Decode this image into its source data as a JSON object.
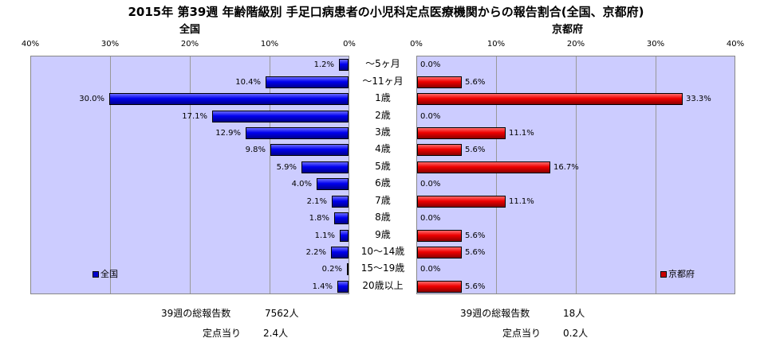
{
  "title": "2015年 第39週 年齢階級別 手足口病患者の小児科定点医療機関からの報告割合(全国、京都府)",
  "chart_data": [
    {
      "type": "bar",
      "orientation": "horizontal",
      "direction": "right-to-left",
      "title": "全国",
      "categories": [
        "～5ヶ月",
        "～11ヶ月",
        "1歳",
        "2歳",
        "3歳",
        "4歳",
        "5歳",
        "6歳",
        "7歳",
        "8歳",
        "9歳",
        "10～14歳",
        "15～19歳",
        "20歳以上"
      ],
      "series": [
        {
          "name": "全国",
          "color": "#0000cc",
          "values": [
            1.2,
            10.4,
            30.0,
            17.1,
            12.9,
            9.8,
            5.9,
            4.0,
            2.1,
            1.8,
            1.1,
            2.2,
            0.2,
            1.4
          ]
        }
      ],
      "xlim": [
        0,
        40
      ],
      "ticks": [
        "40%",
        "30%",
        "20%",
        "10%",
        "0%"
      ],
      "legend": "bottom-left",
      "grid": true
    },
    {
      "type": "bar",
      "orientation": "horizontal",
      "direction": "left-to-right",
      "title": "京都府",
      "categories": [
        "～5ヶ月",
        "～11ヶ月",
        "1歳",
        "2歳",
        "3歳",
        "4歳",
        "5歳",
        "6歳",
        "7歳",
        "8歳",
        "9歳",
        "10～14歳",
        "15～19歳",
        "20歳以上"
      ],
      "series": [
        {
          "name": "京都府",
          "color": "#cc0000",
          "values": [
            0.0,
            5.6,
            33.3,
            0.0,
            11.1,
            5.6,
            16.7,
            0.0,
            11.1,
            0.0,
            5.6,
            5.6,
            0.0,
            5.6
          ]
        }
      ],
      "xlim": [
        0,
        40
      ],
      "ticks": [
        "0%",
        "10%",
        "20%",
        "30%",
        "40%"
      ],
      "legend": "bottom-right",
      "grid": true
    }
  ],
  "footer": {
    "national": {
      "total_label": "39週の総報告数",
      "total_value": "7562人",
      "per_label": "定点当り",
      "per_value": "2.4人"
    },
    "kyoto": {
      "total_label": "39週の総報告数",
      "total_value": "18人",
      "per_label": "定点当り",
      "per_value": "0.2人"
    }
  }
}
